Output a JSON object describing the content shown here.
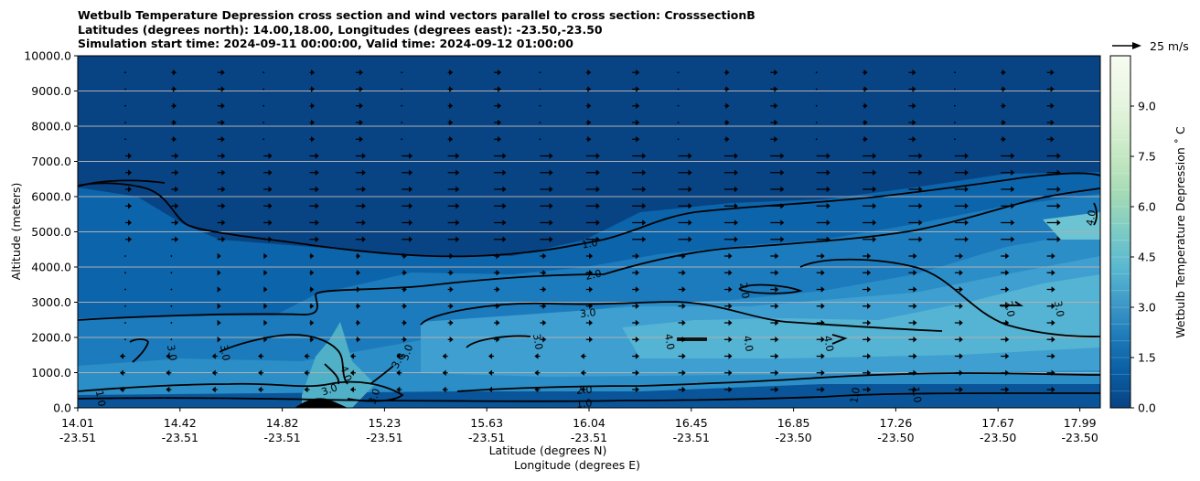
{
  "chart_data": {
    "type": "heatmap",
    "title_lines": [
      "Wetbulb Temperature Depression cross section and wind vectors parallel to cross section: CrosssectionB",
      "Latitudes (degrees north): 14.00,18.00, Longitudes (degrees east): -23.50,-23.50",
      "Simulation start time: 2024-09-11 00:00:00, Valid time: 2024-09-12 01:00:00"
    ],
    "ylabel": "Altitude (meters)",
    "xlabel_lat": "Latitude (degrees N)",
    "xlabel_lon": "Longitude (degrees E)",
    "ylim": [
      0,
      10000
    ],
    "y_ticks": [
      0,
      1000,
      2000,
      3000,
      4000,
      5000,
      6000,
      7000,
      8000,
      9000,
      10000
    ],
    "y_tick_labels": [
      "0.0",
      "1000.0",
      "2000.0",
      "3000.0",
      "4000.0",
      "5000.0",
      "6000.0",
      "7000.0",
      "8000.0",
      "9000.0",
      "10000.0"
    ],
    "x_ticks": [
      {
        "lat": "14.01",
        "lon": "-23.51"
      },
      {
        "lat": "14.42",
        "lon": "-23.51"
      },
      {
        "lat": "14.82",
        "lon": "-23.51"
      },
      {
        "lat": "15.23",
        "lon": "-23.51"
      },
      {
        "lat": "15.63",
        "lon": "-23.51"
      },
      {
        "lat": "16.04",
        "lon": "-23.51"
      },
      {
        "lat": "16.45",
        "lon": "-23.51"
      },
      {
        "lat": "16.85",
        "lon": "-23.50"
      },
      {
        "lat": "17.26",
        "lon": "-23.50"
      },
      {
        "lat": "17.67",
        "lon": "-23.50"
      },
      {
        "lat": "17.99",
        "lon": "-23.50"
      }
    ],
    "x_tick_fractions": [
      0,
      0.1,
      0.2,
      0.3,
      0.4,
      0.5,
      0.6,
      0.7,
      0.8,
      0.9,
      0.98
    ],
    "grid_y": true,
    "colorbar": {
      "label": "Wetbulb Temperature Depression ˚ C",
      "range": [
        0,
        10.5
      ],
      "ticks": [
        0.0,
        1.5,
        3.0,
        4.5,
        6.0,
        7.5,
        9.0
      ],
      "tick_labels": [
        "0.0",
        "1.5",
        "3.0",
        "4.5",
        "6.0",
        "7.5",
        "9.0"
      ],
      "levels": 21
    },
    "contour_labels": [
      "1.0",
      "2.0",
      "3.0",
      "4.0"
    ],
    "quiver_key": {
      "label": "25 m/s"
    }
  }
}
